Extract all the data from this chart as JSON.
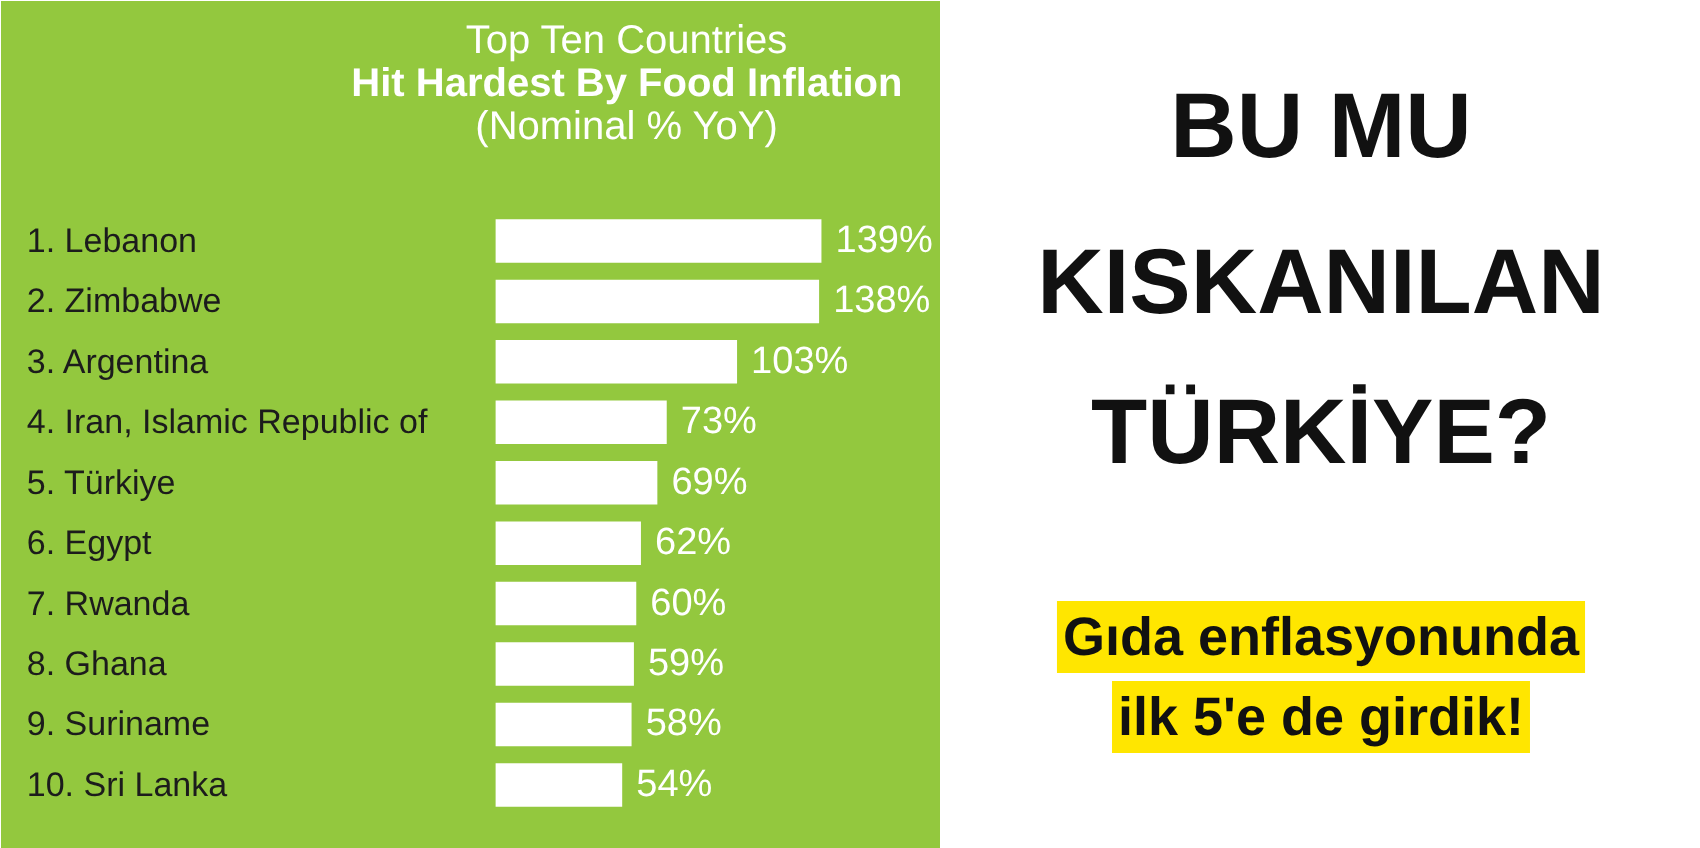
{
  "chart_data": {
    "type": "bar",
    "orientation": "horizontal",
    "title": "Top Ten Countries",
    "subtitle": "Hit Hardest By Food Inflation\n(Nominal % YoY)",
    "categories": [
      "1. Lebanon",
      "2. Zimbabwe",
      "3. Argentina",
      "4. Iran, Islamic Republic of",
      "5. Türkiye",
      "6. Egypt",
      "7. Rwanda",
      "8. Ghana",
      "9. Suriname",
      "10. Sri Lanka"
    ],
    "values": [
      139,
      138,
      103,
      73,
      69,
      62,
      60,
      59,
      58,
      54
    ],
    "value_labels": [
      "139%",
      "138%",
      "103%",
      "73%",
      "69%",
      "62%",
      "60%",
      "59%",
      "58%",
      "54%"
    ],
    "color": "#ffffff",
    "annotations": [
      "BU MU",
      "KISKANILAN",
      "TÜRKİYE?",
      "Gıda enflasyonunda",
      "ilk 5'e de girdik!"
    ]
  }
}
